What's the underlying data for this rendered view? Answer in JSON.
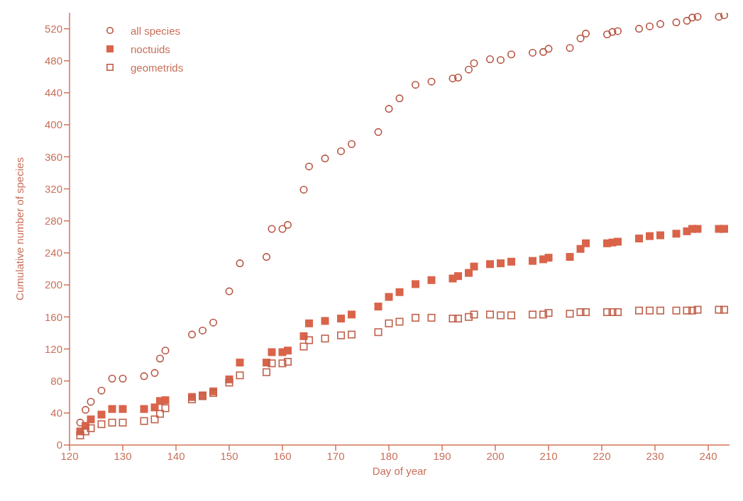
{
  "chart_data": {
    "type": "scatter",
    "xlabel": "Day of year",
    "ylabel": "Cumulative number of species",
    "xlim": [
      120,
      244
    ],
    "xticks": [
      120,
      130,
      140,
      150,
      160,
      170,
      180,
      190,
      200,
      210,
      220,
      230,
      240
    ],
    "ylim": [
      0,
      540
    ],
    "yticks": [
      0,
      40,
      80,
      120,
      160,
      200,
      240,
      280,
      320,
      360,
      400,
      440,
      480,
      520
    ],
    "grid": false,
    "legend": "top left",
    "series": [
      {
        "name": "all species",
        "color": "#b5523f",
        "marker": "circle-open",
        "x": [
          122,
          123,
          124,
          126,
          128,
          130,
          134,
          136,
          137,
          138,
          143,
          145,
          147,
          150,
          152,
          157,
          158,
          160,
          161,
          164,
          165,
          168,
          171,
          173,
          178,
          180,
          182,
          185,
          188,
          192,
          193,
          195,
          196,
          199,
          201,
          203,
          207,
          209,
          210,
          214,
          216,
          217,
          221,
          222,
          223,
          227,
          229,
          231,
          234,
          236,
          237,
          238,
          242,
          243
        ],
        "values": [
          28,
          44,
          54,
          68,
          83,
          83,
          86,
          90,
          108,
          118,
          138,
          143,
          153,
          192,
          227,
          235,
          270,
          270,
          275,
          319,
          348,
          358,
          367,
          376,
          391,
          420,
          433,
          450,
          454,
          458,
          459,
          469,
          477,
          482,
          481,
          488,
          490,
          491,
          495,
          496,
          508,
          514,
          513,
          516,
          517,
          520,
          523,
          526,
          528,
          530,
          534,
          535,
          535,
          537
        ]
      },
      {
        "name": "noctuids",
        "color": "#d9644a",
        "marker": "square",
        "x": [
          122,
          123,
          124,
          126,
          128,
          130,
          134,
          136,
          137,
          138,
          143,
          145,
          147,
          150,
          152,
          157,
          158,
          160,
          161,
          164,
          165,
          168,
          171,
          173,
          178,
          180,
          182,
          185,
          188,
          192,
          193,
          195,
          196,
          199,
          201,
          203,
          207,
          209,
          210,
          214,
          216,
          217,
          221,
          222,
          223,
          227,
          229,
          231,
          234,
          236,
          237,
          238,
          242,
          243
        ],
        "values": [
          17,
          24,
          32,
          38,
          45,
          45,
          45,
          47,
          55,
          56,
          60,
          62,
          67,
          82,
          103,
          103,
          116,
          116,
          118,
          136,
          152,
          155,
          158,
          163,
          173,
          185,
          191,
          201,
          206,
          208,
          211,
          215,
          223,
          226,
          227,
          229,
          230,
          232,
          234,
          235,
          245,
          252,
          252,
          253,
          254,
          258,
          261,
          262,
          264,
          267,
          270,
          270,
          270,
          270
        ]
      },
      {
        "name": "geometrids",
        "color": "#c0604a",
        "marker": "square-open",
        "x": [
          122,
          123,
          124,
          126,
          128,
          130,
          134,
          136,
          137,
          138,
          143,
          145,
          147,
          150,
          152,
          157,
          158,
          160,
          161,
          164,
          165,
          168,
          171,
          173,
          178,
          180,
          182,
          185,
          188,
          192,
          193,
          195,
          196,
          199,
          201,
          203,
          207,
          209,
          210,
          214,
          216,
          217,
          221,
          222,
          223,
          227,
          229,
          231,
          234,
          236,
          237,
          238,
          242,
          243
        ],
        "values": [
          12,
          17,
          21,
          26,
          28,
          28,
          30,
          32,
          39,
          46,
          57,
          61,
          65,
          78,
          87,
          91,
          102,
          102,
          104,
          123,
          131,
          133,
          137,
          138,
          141,
          152,
          154,
          159,
          159,
          158,
          158,
          160,
          163,
          163,
          162,
          162,
          163,
          163,
          165,
          164,
          166,
          166,
          166,
          166,
          166,
          168,
          168,
          168,
          168,
          168,
          168,
          169,
          169,
          169
        ]
      }
    ]
  }
}
